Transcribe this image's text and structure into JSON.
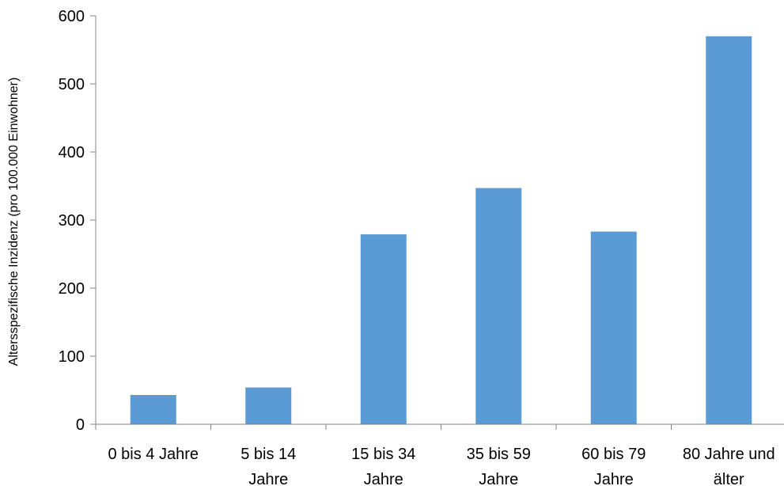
{
  "chart_data": {
    "type": "bar",
    "title": "",
    "xlabel": "",
    "ylabel": "Altersspezifische Inzidenz (pro 100.000 Einwohner)",
    "ylim": [
      0,
      600
    ],
    "yticks": [
      0,
      100,
      200,
      300,
      400,
      500,
      600
    ],
    "grid": false,
    "legend": "none",
    "categories": [
      [
        "0 bis 4 Jahre"
      ],
      [
        "5 bis 14",
        "Jahre"
      ],
      [
        "15 bis 34",
        "Jahre"
      ],
      [
        "35 bis 59",
        "Jahre"
      ],
      [
        "60 bis 79",
        "Jahre"
      ],
      [
        "80 Jahre und",
        "älter"
      ]
    ],
    "values": [
      43,
      54,
      279,
      347,
      283,
      570
    ],
    "colors": {
      "bar": "#5b9bd5",
      "axis": "#868686"
    }
  }
}
